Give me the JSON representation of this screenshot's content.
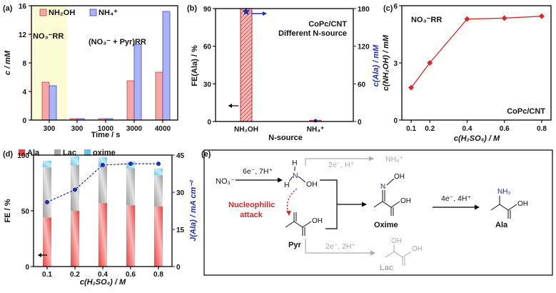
{
  "panels": {
    "a": {
      "label": "(a)"
    },
    "b": {
      "label": "(b)"
    },
    "c": {
      "label": "(c)"
    },
    "d": {
      "label": "(d)"
    },
    "e": {
      "label": "(e)"
    }
  },
  "chart_data": [
    {
      "id": "a",
      "type": "bar",
      "categories": [
        "300",
        "300",
        "1000",
        "3000",
        "4000"
      ],
      "series": [
        {
          "name": "NH2OH",
          "color": "#f4a7a7",
          "values": [
            5.3,
            0.2,
            0.2,
            5.5,
            6.7
          ]
        },
        {
          "name": "NH4+",
          "color": "#aab4f2",
          "values": [
            4.8,
            0.2,
            0.2,
            10.6,
            15.2
          ]
        }
      ],
      "legend": [
        "NH₂OH",
        "NH₄⁺"
      ],
      "group_labels": [
        "NO₃⁻RR",
        "(NO₃⁻ + Pyr)RR"
      ],
      "xlabel": "Time / s",
      "ylabel": "c / mM",
      "ylim": [
        0,
        16
      ],
      "yticks": [
        "0",
        "4",
        "8",
        "12",
        "16"
      ]
    },
    {
      "id": "b",
      "type": "bar",
      "categories": [
        "NH₂OH",
        "NH₄⁺"
      ],
      "fe_values": [
        90,
        1
      ],
      "c_ala_values": [
        175,
        0
      ],
      "xlabel": "N-source",
      "ylabel_left": "FE(Ala) / %",
      "ylabel_right": "c(Ala) / mM",
      "ylim_left": [
        0,
        90
      ],
      "ylim_right": [
        0,
        180
      ],
      "yticks_left": [
        "0",
        "30",
        "60",
        "90"
      ],
      "yticks_right": [
        "0",
        "60",
        "120",
        "180"
      ],
      "annotation": [
        "CoPc/CNT",
        "Different N-source"
      ]
    },
    {
      "id": "c",
      "type": "line",
      "x": [
        0.1,
        0.2,
        0.4,
        0.6,
        0.8
      ],
      "values": [
        1.7,
        3.0,
        5.3,
        5.35,
        5.45
      ],
      "color": "#d62a2a",
      "xlabel": "c(H₂SO₄) / M",
      "ylabel": "c(NH₂OH) / mM",
      "xticks": [
        "0.1",
        "0.2",
        "0.4",
        "0.6",
        "0.8"
      ],
      "ylim": [
        0,
        6
      ],
      "yticks": [
        "0",
        "3",
        "6"
      ],
      "annotation_top": "NO₃⁻RR",
      "annotation_bottom": "CoPc/CNT"
    },
    {
      "id": "d",
      "type": "bar",
      "categories": [
        "0.1",
        "0.2",
        "0.4",
        "0.6",
        "0.8"
      ],
      "series": [
        {
          "name": "Ala",
          "color": "#e8413f",
          "values": [
            44,
            50,
            57,
            55,
            54
          ]
        },
        {
          "name": "Lac",
          "color": "#a6a6a6",
          "values": [
            45,
            41,
            33,
            33,
            28
          ]
        },
        {
          "name": "oxime",
          "color": "#5fc6ea",
          "values": [
            6,
            8,
            8,
            6,
            6
          ]
        }
      ],
      "j_ala": [
        26,
        31,
        41,
        41.5,
        41.5
      ],
      "legend": [
        "Ala",
        "Lac",
        "oxime"
      ],
      "xlabel": "c(H₂SO₄) / M",
      "ylabel_left": "FE / %",
      "ylabel_right": "J(Ala) / mA cm⁻²",
      "ylim_left": [
        0,
        100
      ],
      "ylim_right": [
        0,
        45
      ],
      "yticks_left": [
        "0",
        "50",
        "100"
      ],
      "yticks_right": [
        "0",
        "15",
        "30",
        "45"
      ]
    }
  ],
  "scheme": {
    "reactant": "NO₃⁻",
    "step1": "6e⁻, 7H⁺",
    "side_top": "2e⁻, H⁺",
    "nh4": "NH₄⁺",
    "nucleophilic": [
      "Nucleophilic",
      "attack"
    ],
    "pyr": "Pyr",
    "oxime": "Oxime",
    "step2": "4e⁻, 4H⁺",
    "ala": "Ala",
    "side_bottom": "2e⁻, 2H⁺",
    "lac": "Lac",
    "nh2oh_atoms": [
      "H",
      "N",
      "OH",
      "H"
    ],
    "oxime_atoms": [
      "N",
      "OH",
      "OH"
    ],
    "ala_atoms": [
      "NH₂",
      "OH"
    ],
    "pyr_atoms": [
      "OH"
    ],
    "lac_atoms": [
      "OH",
      "OH"
    ]
  }
}
